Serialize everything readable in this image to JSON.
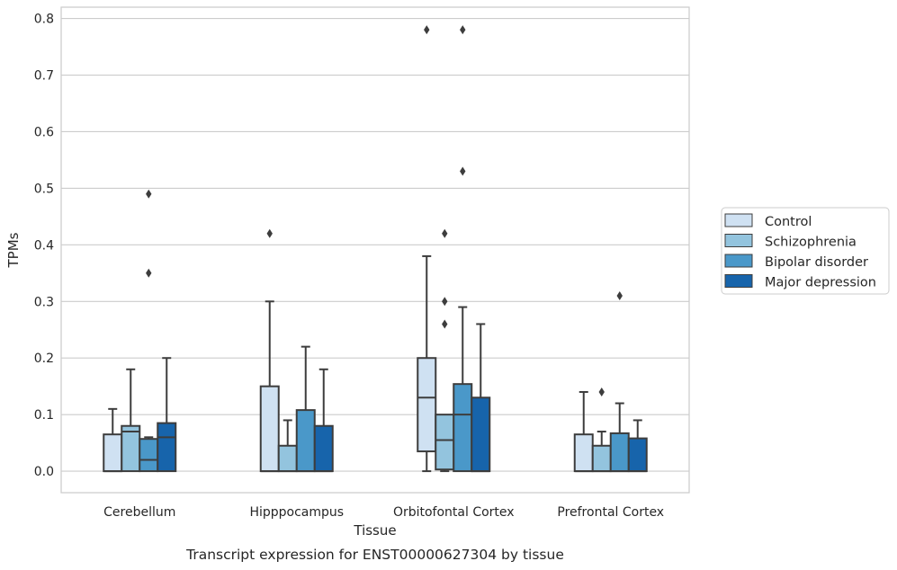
{
  "chart_data": {
    "type": "box",
    "caption": "Transcript expression for ENST00000627304 by tissue",
    "xlabel": "Tissue",
    "ylabel": "TPMs",
    "ylim": [
      -0.038,
      0.82
    ],
    "yticks": [
      0.0,
      0.1,
      0.2,
      0.3,
      0.4,
      0.5,
      0.6,
      0.7,
      0.8
    ],
    "ytick_labels": [
      "0.0",
      "0.1",
      "0.2",
      "0.3",
      "0.4",
      "0.5",
      "0.6",
      "0.7",
      "0.8"
    ],
    "grid": true,
    "legend_position": "right",
    "categories": [
      "Cerebellum",
      "Hipppocampus",
      "Orbitofontal Cortex",
      "Prefrontal Cortex"
    ],
    "series": [
      {
        "name": "Control",
        "color": "#cfe1f2",
        "boxes": [
          {
            "whislo": 0.0,
            "q1": 0.0,
            "med": 0.0,
            "q3": 0.065,
            "whishi": 0.11,
            "fliers": []
          },
          {
            "whislo": 0.0,
            "q1": 0.0,
            "med": 0.0,
            "q3": 0.15,
            "whishi": 0.3,
            "fliers": [
              0.42
            ]
          },
          {
            "whislo": 0.0,
            "q1": 0.035,
            "med": 0.13,
            "q3": 0.2,
            "whishi": 0.38,
            "fliers": [
              0.78
            ]
          },
          {
            "whislo": 0.0,
            "q1": 0.0,
            "med": 0.0,
            "q3": 0.065,
            "whishi": 0.14,
            "fliers": []
          }
        ]
      },
      {
        "name": "Schizophrenia",
        "color": "#93c4de",
        "boxes": [
          {
            "whislo": 0.0,
            "q1": 0.0,
            "med": 0.07,
            "q3": 0.08,
            "whishi": 0.18,
            "fliers": []
          },
          {
            "whislo": 0.0,
            "q1": 0.0,
            "med": 0.0,
            "q3": 0.045,
            "whishi": 0.09,
            "fliers": []
          },
          {
            "whislo": 0.0,
            "q1": 0.003,
            "med": 0.055,
            "q3": 0.1,
            "whishi": 0.1,
            "fliers": [
              0.26,
              0.3,
              0.42
            ]
          },
          {
            "whislo": 0.0,
            "q1": 0.0,
            "med": 0.0,
            "q3": 0.045,
            "whishi": 0.07,
            "fliers": [
              0.14
            ]
          }
        ]
      },
      {
        "name": "Bipolar disorder",
        "color": "#4a98c9",
        "boxes": [
          {
            "whislo": 0.0,
            "q1": 0.0,
            "med": 0.02,
            "q3": 0.057,
            "whishi": 0.06,
            "fliers": [
              0.35,
              0.49
            ]
          },
          {
            "whislo": 0.0,
            "q1": 0.0,
            "med": 0.0,
            "q3": 0.108,
            "whishi": 0.22,
            "fliers": []
          },
          {
            "whislo": 0.0,
            "q1": 0.0,
            "med": 0.1,
            "q3": 0.154,
            "whishi": 0.29,
            "fliers": [
              0.53,
              0.78
            ]
          },
          {
            "whislo": 0.0,
            "q1": 0.0,
            "med": 0.0,
            "q3": 0.067,
            "whishi": 0.12,
            "fliers": [
              0.31
            ]
          }
        ]
      },
      {
        "name": "Major depression",
        "color": "#1764ab",
        "boxes": [
          {
            "whislo": 0.0,
            "q1": 0.0,
            "med": 0.06,
            "q3": 0.085,
            "whishi": 0.2,
            "fliers": []
          },
          {
            "whislo": 0.0,
            "q1": 0.0,
            "med": 0.0,
            "q3": 0.08,
            "whishi": 0.18,
            "fliers": []
          },
          {
            "whislo": 0.0,
            "q1": 0.0,
            "med": 0.0,
            "q3": 0.13,
            "whishi": 0.26,
            "fliers": []
          },
          {
            "whislo": 0.0,
            "q1": 0.0,
            "med": 0.0,
            "q3": 0.058,
            "whishi": 0.09,
            "fliers": []
          }
        ]
      }
    ]
  }
}
